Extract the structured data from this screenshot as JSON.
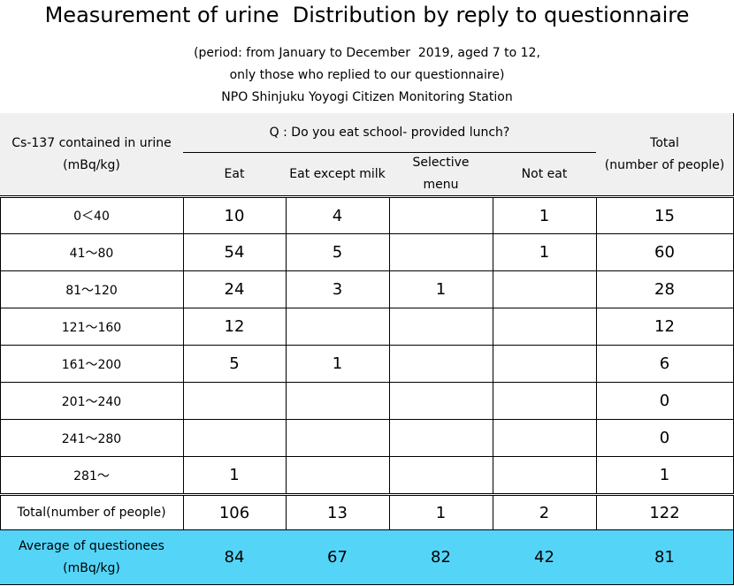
{
  "title": "Measurement of urine  Distribution by reply to questionnaire",
  "subtitle_lines": [
    "(period: from January to December  2019, aged 7 to 12,",
    "only those who replied to our questionnaire)",
    "NPO Shinjuku Yoyogi Citizen Monitoring Station"
  ],
  "table": {
    "corner_label": [
      "Cs-137 contained in urine",
      "(mBq/kg)"
    ],
    "question": "Q : Do you eat school- provided lunch?",
    "columns": [
      "Eat",
      "Eat except milk",
      [
        "Selective",
        "menu"
      ],
      "Not eat"
    ],
    "total_header": [
      "Total",
      "(number of people)"
    ],
    "rows": [
      {
        "label": "0＜40",
        "values": [
          "10",
          "4",
          "",
          "1"
        ],
        "total": "15"
      },
      {
        "label": "41～80",
        "values": [
          "54",
          "5",
          "",
          "1"
        ],
        "total": "60"
      },
      {
        "label": "81～120",
        "values": [
          "24",
          "3",
          "1",
          ""
        ],
        "total": "28"
      },
      {
        "label": "121～160",
        "values": [
          "12",
          "",
          "",
          ""
        ],
        "total": "12"
      },
      {
        "label": "161～200",
        "values": [
          "5",
          "1",
          "",
          ""
        ],
        "total": "6"
      },
      {
        "label": "201～240",
        "values": [
          "",
          "",
          "",
          ""
        ],
        "total": "0"
      },
      {
        "label": "241～280",
        "values": [
          "",
          "",
          "",
          ""
        ],
        "total": "0"
      },
      {
        "label": "281～",
        "values": [
          "1",
          "",
          "",
          ""
        ],
        "total": "1"
      }
    ],
    "total_row": {
      "label": "Total(number of people)",
      "values": [
        "106",
        "13",
        "1",
        "2"
      ],
      "total": "122"
    },
    "average_row": {
      "label": [
        "Average of questionees",
        "(mBq/kg)"
      ],
      "values": [
        "84",
        "67",
        "82",
        "42"
      ],
      "total": "81"
    }
  },
  "colors": {
    "header_bg": "#f0f0f0",
    "average_bg": "#54d5f8"
  }
}
